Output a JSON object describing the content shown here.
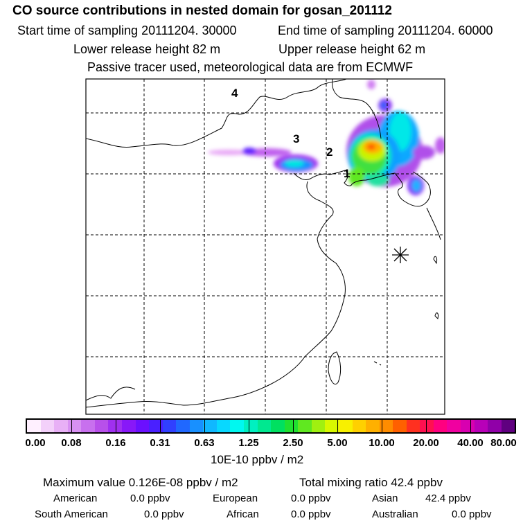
{
  "header": {
    "title": "CO  source contributions in nested domain for gosan_201112",
    "start_label": "Start time of sampling 20111204. 30000",
    "end_label": "End time of sampling 20111204. 60000",
    "lower_height": "Lower release height   82 m",
    "upper_height": "Upper release height   62 m",
    "tracer_note": "Passive tracer used, meteorological data are from ECMWF"
  },
  "map": {
    "region_labels": [
      "4",
      "3",
      "2",
      "1"
    ],
    "receptor_marker": "asterisk-icon"
  },
  "colorbar": {
    "colors": [
      "#fff0ff",
      "#f3d0fa",
      "#e8b0f6",
      "#d890f2",
      "#c870ee",
      "#b850ea",
      "#a030f0",
      "#8818f8",
      "#6b10ff",
      "#4a20ff",
      "#3040ff",
      "#2068ff",
      "#1890ff",
      "#10b8ff",
      "#08d8ff",
      "#00f8f0",
      "#00f0c0",
      "#00e890",
      "#00e060",
      "#20e030",
      "#60e820",
      "#a0f010",
      "#d8f800",
      "#f8f000",
      "#ffd000",
      "#ffb000",
      "#ff8c00",
      "#ff6000",
      "#ff3020",
      "#ff1050",
      "#ff0080",
      "#f000a0",
      "#d800b0",
      "#b800b8",
      "#9000a8",
      "#600080"
    ],
    "tick_labels": [
      "0.00",
      "0.08",
      "0.16",
      "0.31",
      "0.63",
      "1.25",
      "2.50",
      "5.00",
      "10.00",
      "20.00",
      "40.00",
      "80.00"
    ],
    "units": "10E-10 ppbv / m2"
  },
  "chart_data": {
    "type": "heatmap",
    "title": "CO  source contributions in nested domain for gosan_201112",
    "color_scale_breaks": [
      0.0,
      0.08,
      0.16,
      0.31,
      0.63,
      1.25,
      2.5,
      5.0,
      10.0,
      20.0,
      40.0,
      80.0
    ],
    "units": "10E-10 ppbv / m2",
    "grid": true
  },
  "summary": {
    "max_label": "Maximum value  0.126E-08 ppbv / m2",
    "total_label": "Total mixing ratio       42.4 ppbv",
    "american_label": "American",
    "american_value": "0.0 ppbv",
    "european_label": "European",
    "european_value": "0.0 ppbv",
    "asian_label": "Asian",
    "asian_value": "42.4 ppbv",
    "south_american_label": "South American",
    "south_american_value": "0.0 ppbv",
    "african_label": "African",
    "african_value": "0.0 ppbv",
    "australian_label": "Australian",
    "australian_value": "0.0 ppbv"
  }
}
